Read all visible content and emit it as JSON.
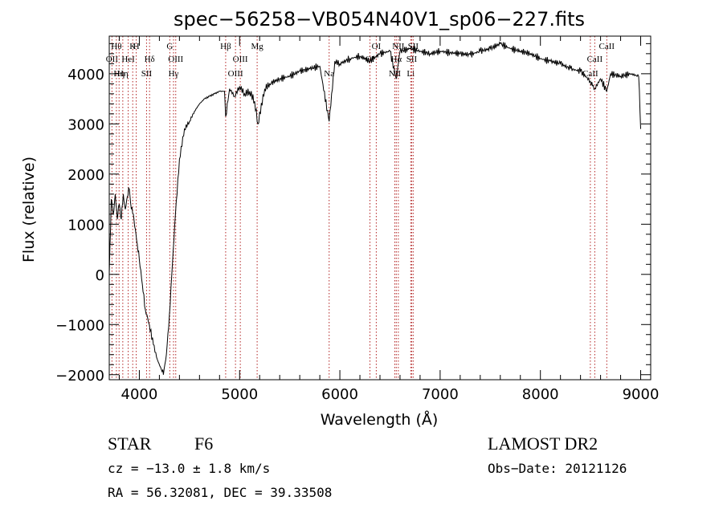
{
  "chart_data": {
    "type": "line",
    "title": "spec−56258−VB054N40V1_sp06−227.fits",
    "xlabel": "Wavelength (Å)",
    "ylabel": "Flux (relative)",
    "xlim": [
      3700,
      9100
    ],
    "ylim": [
      -2100,
      4750
    ],
    "xticks": [
      4000,
      5000,
      6000,
      7000,
      8000,
      9000
    ],
    "yticks": [
      -2000,
      -1000,
      0,
      1000,
      2000,
      3000,
      4000
    ],
    "xtick_labels": [
      "4000",
      "5000",
      "6000",
      "7000",
      "8000",
      "9000"
    ],
    "ytick_labels": [
      "−2000",
      "−1000",
      "0",
      "1000",
      "2000",
      "3000",
      "4000"
    ],
    "series": [
      {
        "x": [
          3700,
          3720,
          3740,
          3760,
          3780,
          3800,
          3820,
          3840,
          3860,
          3880,
          3900,
          3920,
          3940,
          3960,
          3980,
          4000,
          4030,
          4060,
          4100,
          4140,
          4180,
          4220,
          4240,
          4270,
          4300,
          4330,
          4360,
          4400,
          4450,
          4500,
          4550,
          4600,
          4650,
          4700,
          4750,
          4800,
          4850,
          4861,
          4900,
          4950,
          5000,
          5050,
          5100,
          5150,
          5183,
          5250,
          5300,
          5400,
          5500,
          5600,
          5700,
          5800,
          5893,
          5950,
          6000,
          6100,
          6200,
          6300,
          6400,
          6500,
          6563,
          6600,
          6700,
          6800,
          6900,
          7000,
          7100,
          7200,
          7300,
          7400,
          7500,
          7600,
          7700,
          7800,
          7900,
          8000,
          8100,
          8200,
          8300,
          8400,
          8498,
          8542,
          8600,
          8662,
          8700,
          8800,
          8900,
          8980,
          9000
        ],
        "y": [
          0,
          1500,
          1200,
          1600,
          1100,
          1400,
          1100,
          1600,
          1300,
          1550,
          1700,
          1300,
          1200,
          900,
          600,
          300,
          -200,
          -700,
          -1000,
          -1400,
          -1700,
          -1900,
          -2000,
          -1600,
          -800,
          200,
          1200,
          2300,
          2900,
          3050,
          3250,
          3400,
          3500,
          3550,
          3600,
          3650,
          3650,
          3150,
          3700,
          3550,
          3750,
          3600,
          3650,
          3450,
          3000,
          3700,
          3800,
          3900,
          3950,
          4050,
          4100,
          4150,
          3050,
          4250,
          4200,
          4300,
          4350,
          4250,
          4400,
          4450,
          3900,
          4450,
          4500,
          4450,
          4400,
          4450,
          4420,
          4400,
          4380,
          4450,
          4500,
          4600,
          4500,
          4450,
          4400,
          4300,
          4250,
          4200,
          4100,
          4050,
          3850,
          3700,
          3900,
          3650,
          4000,
          3950,
          4000,
          3950,
          2900
        ]
      }
    ],
    "lines": [
      {
        "x": 3727,
        "label": "OII",
        "row": 1
      },
      {
        "x": 3771,
        "label": "Hθ",
        "row": 0
      },
      {
        "x": 3798,
        "label": "Hη",
        "row": 2
      },
      {
        "x": 3835,
        "label": "Hη",
        "row": 2
      },
      {
        "x": 3889,
        "label": "HeI",
        "row": 1
      },
      {
        "x": 3934,
        "label": "K",
        "row": 0
      },
      {
        "x": 3969,
        "label": "H",
        "row": 0
      },
      {
        "x": 4072,
        "label": "SII",
        "row": 2
      },
      {
        "x": 4102,
        "label": "Hδ",
        "row": 1
      },
      {
        "x": 4304,
        "label": "G",
        "row": 0
      },
      {
        "x": 4341,
        "label": "Hγ",
        "row": 2
      },
      {
        "x": 4363,
        "label": "OIII",
        "row": 1
      },
      {
        "x": 4861,
        "label": "Hβ",
        "row": 0
      },
      {
        "x": 4959,
        "label": "OIII",
        "row": 2
      },
      {
        "x": 5007,
        "label": "OIII",
        "row": 1
      },
      {
        "x": 5175,
        "label": "Mg",
        "row": 0
      },
      {
        "x": 5893,
        "label": "Na",
        "row": 2
      },
      {
        "x": 6300,
        "label": "OI",
        "row": 1
      },
      {
        "x": 6363,
        "label": "OI",
        "row": 0
      },
      {
        "x": 6548,
        "label": "NII",
        "row": 2
      },
      {
        "x": 6563,
        "label": "Hα",
        "row": 1
      },
      {
        "x": 6583,
        "label": "NII",
        "row": 0
      },
      {
        "x": 6707,
        "label": "Li",
        "row": 2
      },
      {
        "x": 6716,
        "label": "SII",
        "row": 1
      },
      {
        "x": 6731,
        "label": "SII",
        "row": 0
      },
      {
        "x": 8498,
        "label": "CaII",
        "row": 2
      },
      {
        "x": 8542,
        "label": "CaII",
        "row": 1
      },
      {
        "x": 8662,
        "label": "CaII",
        "row": 0
      }
    ],
    "grid": false
  },
  "info": {
    "class_label": "STAR",
    "subclass_label": "F6",
    "survey": "LAMOST DR2",
    "cz": "cz = −13.0 ± 1.8 km/s",
    "obs_date": "Obs−Date: 20121126",
    "radec": "RA =  56.32081, DEC =  39.33508"
  }
}
